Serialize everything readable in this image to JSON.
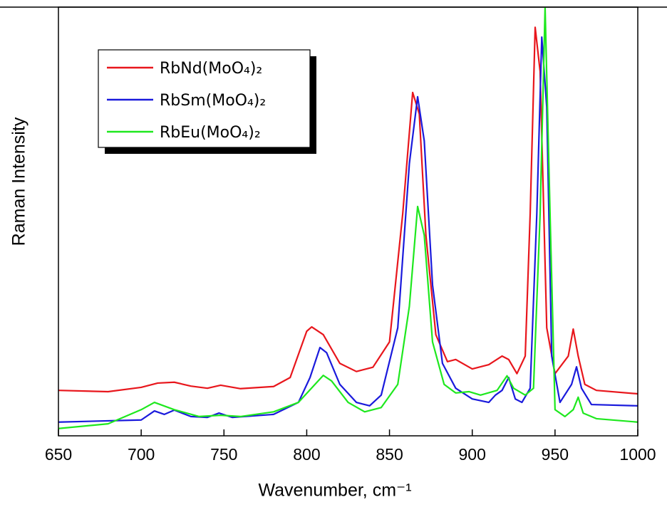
{
  "chart_data": {
    "type": "line",
    "xlabel": "Wavenumber, cm⁻¹",
    "ylabel": "Raman Intensity",
    "xlim": [
      650,
      1000
    ],
    "xticks": [
      650,
      700,
      750,
      800,
      850,
      900,
      950,
      1000
    ],
    "ylim": [
      0,
      100
    ],
    "legend": "upper left",
    "series": [
      {
        "name": "RbNd(MoO₄)₂",
        "color": "#e8161c",
        "x": [
          650,
          680,
          700,
          710,
          720,
          730,
          740,
          748,
          760,
          780,
          790,
          800,
          803,
          810,
          820,
          830,
          840,
          850,
          858,
          864,
          868,
          872,
          878,
          885,
          890,
          900,
          910,
          918,
          922,
          927,
          932,
          935,
          938,
          941,
          945,
          950,
          958,
          961,
          964,
          968,
          975,
          1000
        ],
        "values": [
          10.6,
          10.3,
          11.3,
          12.3,
          12.5,
          11.6,
          11.1,
          11.8,
          11.0,
          11.5,
          13.6,
          24.4,
          25.4,
          23.6,
          16.9,
          15.0,
          16.0,
          21.9,
          51.8,
          80.1,
          75.1,
          46.8,
          23.6,
          17.3,
          17.8,
          15.6,
          16.6,
          18.6,
          17.8,
          14.5,
          18.6,
          51.8,
          95.3,
          85.0,
          25.2,
          14.5,
          18.6,
          24.9,
          18.6,
          12.0,
          10.6,
          9.8
        ]
      },
      {
        "name": "RbSm(MoO₄)₂",
        "color": "#1a1adc",
        "x": [
          650,
          700,
          708,
          714,
          720,
          730,
          740,
          747,
          755,
          780,
          795,
          802,
          808,
          812,
          820,
          830,
          838,
          845,
          855,
          862,
          867,
          871,
          876,
          882,
          890,
          900,
          910,
          914,
          918,
          922,
          926,
          930,
          935,
          939,
          942,
          945,
          948,
          953,
          960,
          963,
          966,
          972,
          1000
        ],
        "values": [
          3.2,
          3.7,
          5.8,
          5.0,
          6.0,
          4.5,
          4.3,
          5.3,
          4.3,
          5.0,
          7.8,
          13.6,
          20.6,
          19.4,
          12.0,
          7.8,
          7.0,
          9.5,
          25.2,
          63.5,
          79.1,
          68.8,
          35.2,
          16.9,
          11.1,
          8.6,
          7.8,
          9.5,
          10.6,
          13.6,
          8.6,
          7.8,
          11.1,
          51.8,
          93.0,
          76.7,
          18.6,
          7.8,
          12.0,
          16.1,
          11.1,
          7.3,
          7.0
        ]
      },
      {
        "name": "RbEu(MoO₄)₂",
        "color": "#1ee81e",
        "x": [
          650,
          680,
          700,
          708,
          720,
          735,
          748,
          760,
          780,
          795,
          805,
          810,
          815,
          825,
          835,
          845,
          855,
          862,
          867,
          871,
          876,
          883,
          890,
          898,
          905,
          915,
          921,
          925,
          932,
          937,
          941,
          944,
          947,
          950,
          956,
          961,
          964,
          967,
          975,
          1000
        ],
        "values": [
          1.7,
          2.8,
          6.1,
          7.8,
          6.1,
          4.5,
          4.8,
          4.5,
          5.6,
          7.8,
          12.0,
          14.1,
          12.8,
          7.8,
          5.6,
          6.6,
          12.0,
          30.2,
          53.5,
          46.8,
          21.9,
          12.0,
          10.0,
          10.3,
          9.5,
          10.6,
          14.0,
          11.1,
          9.5,
          11.1,
          51.8,
          100,
          51.8,
          6.1,
          4.5,
          6.1,
          9.0,
          5.3,
          4.0,
          3.2
        ]
      }
    ]
  }
}
